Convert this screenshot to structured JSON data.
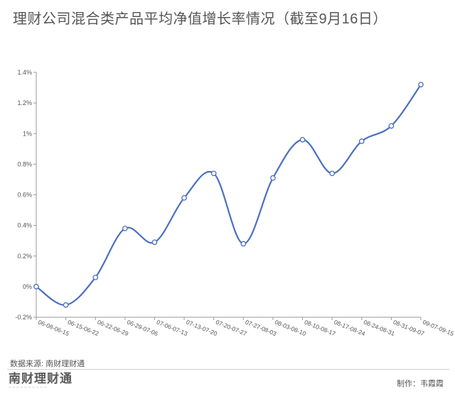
{
  "title": "理财公司混合类产品平均净值增长率情况（截至9月16日）",
  "source": "数据来源: 南财理财通",
  "logo": {
    "text": "南财理财通",
    "icon": "nancai-licaitong-logo"
  },
  "credit": "制作：韦霞霞",
  "colors": {
    "line": "#4a6fc1",
    "axis": "#9a9a9a",
    "marker_fill": "#ffffff"
  },
  "chart_data": {
    "type": "line",
    "title": "",
    "xlabel": "",
    "ylabel": "",
    "categories": [
      "06-08-06-15",
      "06-15-06-22",
      "06-22-06-29",
      "06-29-07-06",
      "07-06-07-13",
      "07-13-07-20",
      "07-20-07-27",
      "07-27-08-03",
      "08-03-08-10",
      "08-10-08-17",
      "08-17-08-24",
      "08-24-08-31",
      "08-31-09-07",
      "09-07-09-15"
    ],
    "series": [
      {
        "values": [
          0.0,
          -0.12,
          0.06,
          0.38,
          0.29,
          0.58,
          0.74,
          0.28,
          0.71,
          0.96,
          0.74,
          0.95,
          1.05,
          1.32
        ]
      }
    ],
    "y_ticks": [
      "1.4%",
      "1.2%",
      "1%",
      "0.8%",
      "0.6%",
      "0.4%",
      "0.2%",
      "0%",
      "-0.2%"
    ],
    "ylim": [
      -0.2,
      1.4
    ],
    "grid": false,
    "smooth": true
  }
}
